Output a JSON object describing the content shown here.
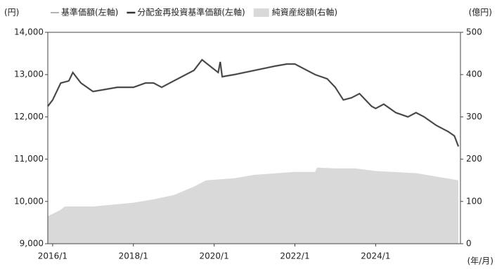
{
  "chart_data": {
    "type": "line",
    "y_unit": "(円)",
    "y2_unit": "(億円)",
    "x_unit": "(年/月)",
    "xlim": [
      2015.88,
      2026.1
    ],
    "xticks": [
      {
        "value": 2016,
        "label": "2016/1"
      },
      {
        "value": 2018,
        "label": "2018/1"
      },
      {
        "value": 2020,
        "label": "2020/1"
      },
      {
        "value": 2022,
        "label": "2022/1"
      },
      {
        "value": 2024,
        "label": "2024/1"
      }
    ],
    "ylim": [
      9000,
      14000
    ],
    "yticks": [
      {
        "value": 9000,
        "label": "9,000"
      },
      {
        "value": 10000,
        "label": "10,000"
      },
      {
        "value": 11000,
        "label": "11,000"
      },
      {
        "value": 12000,
        "label": "12,000"
      },
      {
        "value": 13000,
        "label": "13,000"
      },
      {
        "value": 14000,
        "label": "14,000"
      }
    ],
    "y2lim": [
      0,
      500
    ],
    "y2ticks": [
      0,
      100,
      200,
      300,
      400,
      500
    ],
    "series": [
      {
        "name": "純資産総額(右軸)",
        "color": "#d9d9d9",
        "kind": "area",
        "axis": "y2",
        "x": [
          2015.88,
          2016.2,
          2016.3,
          2017.0,
          2018.0,
          2018.5,
          2019.0,
          2019.5,
          2019.8,
          2020.5,
          2021.0,
          2022.0,
          2022.5,
          2022.55,
          2023.0,
          2023.5,
          2024.0,
          2025.0,
          2026.05
        ],
        "values": [
          65,
          80,
          88,
          88,
          97,
          105,
          115,
          135,
          150,
          155,
          163,
          170,
          170,
          180,
          178,
          178,
          172,
          167,
          150
        ]
      },
      {
        "name": "基準価額(左軸)",
        "color": "#9a9a9a",
        "kind": "line",
        "x": [
          2015.88,
          2016.0,
          2016.2,
          2016.4,
          2016.5,
          2016.7,
          2017.0,
          2017.3,
          2017.6,
          2018.0,
          2018.3,
          2018.5,
          2018.7,
          2019.0,
          2019.3,
          2019.5,
          2019.7,
          2019.9,
          2020.1,
          2020.15,
          2020.2,
          2020.5,
          2021.0,
          2021.5,
          2021.8,
          2022.0,
          2022.2,
          2022.5,
          2022.8,
          2023.0,
          2023.2,
          2023.4,
          2023.6,
          2023.9,
          2024.0,
          2024.2,
          2024.5,
          2024.8,
          2025.0,
          2025.2,
          2025.5,
          2025.8,
          2025.95,
          2026.05
        ],
        "values": [
          12250,
          12400,
          12800,
          12850,
          13050,
          12800,
          12600,
          12650,
          12700,
          12700,
          12800,
          12800,
          12700,
          12850,
          13000,
          13100,
          13350,
          13200,
          13050,
          13300,
          12950,
          13000,
          13100,
          13200,
          13250,
          13250,
          13150,
          13000,
          12900,
          12700,
          12400,
          12450,
          12550,
          12250,
          12200,
          12300,
          12100,
          12000,
          12100,
          12000,
          11800,
          11650,
          11550,
          11300
        ]
      },
      {
        "name": "分配金再投資基準価額(左軸)",
        "color": "#333333",
        "kind": "line",
        "x": [
          2015.88,
          2016.0,
          2016.2,
          2016.4,
          2016.5,
          2016.7,
          2017.0,
          2017.3,
          2017.6,
          2018.0,
          2018.3,
          2018.5,
          2018.7,
          2019.0,
          2019.3,
          2019.5,
          2019.7,
          2019.9,
          2020.1,
          2020.15,
          2020.2,
          2020.5,
          2021.0,
          2021.5,
          2021.8,
          2022.0,
          2022.2,
          2022.5,
          2022.8,
          2023.0,
          2023.2,
          2023.4,
          2023.6,
          2023.9,
          2024.0,
          2024.2,
          2024.5,
          2024.8,
          2025.0,
          2025.2,
          2025.5,
          2025.8,
          2025.95,
          2026.05
        ],
        "values": [
          12250,
          12400,
          12800,
          12850,
          13050,
          12800,
          12600,
          12650,
          12700,
          12700,
          12800,
          12800,
          12700,
          12850,
          13000,
          13100,
          13350,
          13200,
          13050,
          13300,
          12950,
          13000,
          13100,
          13200,
          13250,
          13250,
          13150,
          13000,
          12900,
          12700,
          12400,
          12450,
          12550,
          12250,
          12200,
          12300,
          12100,
          12000,
          12100,
          12000,
          11800,
          11650,
          11550,
          11300
        ]
      }
    ]
  }
}
